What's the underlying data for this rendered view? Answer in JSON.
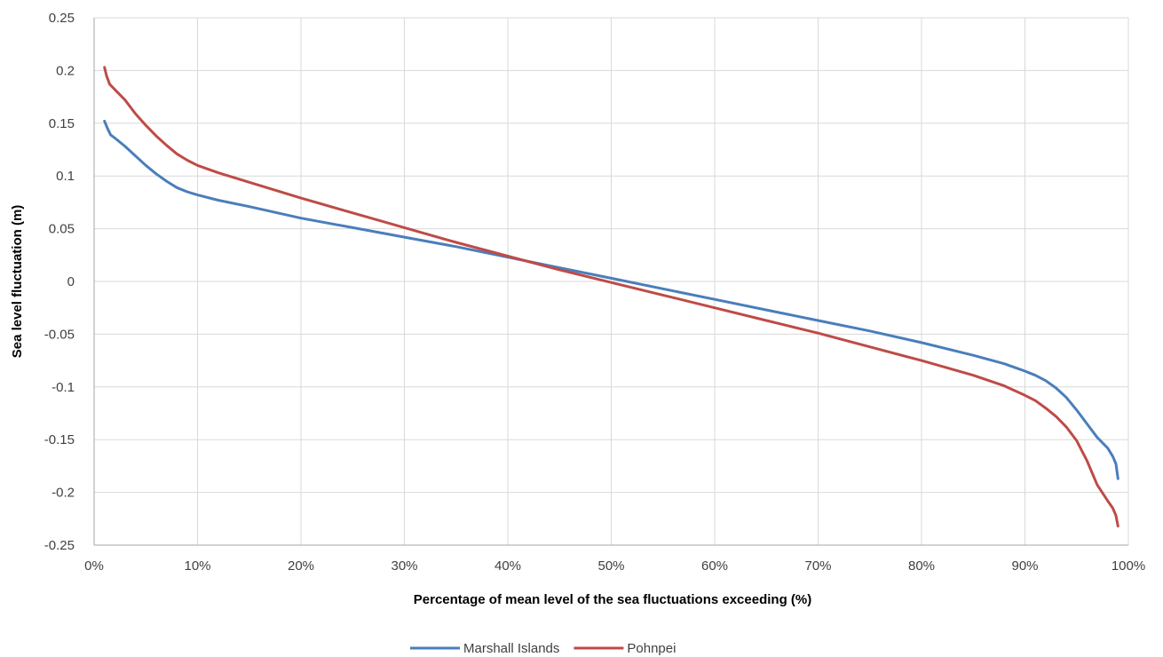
{
  "chart_data": {
    "type": "line",
    "title": "",
    "xlabel": "Percentage of mean level of the sea fluctuations  exceeding (%)",
    "ylabel": "Sea level fluctuation (m)",
    "xlim": [
      0,
      100
    ],
    "ylim": [
      -0.25,
      0.25
    ],
    "x_ticks": [
      0,
      10,
      20,
      30,
      40,
      50,
      60,
      70,
      80,
      90,
      100
    ],
    "x_tick_labels": [
      "0%",
      "10%",
      "20%",
      "30%",
      "40%",
      "50%",
      "60%",
      "70%",
      "80%",
      "90%",
      "100%"
    ],
    "y_ticks": [
      0.25,
      0.2,
      0.15,
      0.1,
      0.05,
      0,
      -0.05,
      -0.1,
      -0.15,
      -0.2,
      -0.25
    ],
    "y_tick_labels": [
      "0.25",
      "0.2",
      "0.15",
      "0.1",
      "0.05",
      "0",
      "-0.05",
      "-0.1",
      "-0.15",
      "-0.2",
      "-0.25"
    ],
    "grid": true,
    "legend_position": "bottom",
    "series": [
      {
        "name": "Marshall Islands",
        "color": "#4a7ebb",
        "points": [
          [
            1,
            0.152
          ],
          [
            1.3,
            0.145
          ],
          [
            1.6,
            0.139
          ],
          [
            2,
            0.136
          ],
          [
            3,
            0.128
          ],
          [
            4,
            0.119
          ],
          [
            5,
            0.11
          ],
          [
            6,
            0.102
          ],
          [
            7,
            0.095
          ],
          [
            8,
            0.089
          ],
          [
            9,
            0.085
          ],
          [
            10,
            0.082
          ],
          [
            12,
            0.077
          ],
          [
            15,
            0.071
          ],
          [
            20,
            0.06
          ],
          [
            25,
            0.051
          ],
          [
            30,
            0.042
          ],
          [
            35,
            0.033
          ],
          [
            40,
            0.023
          ],
          [
            45,
            0.013
          ],
          [
            50,
            0.003
          ],
          [
            55,
            -0.007
          ],
          [
            60,
            -0.017
          ],
          [
            65,
            -0.027
          ],
          [
            70,
            -0.037
          ],
          [
            75,
            -0.047
          ],
          [
            80,
            -0.058
          ],
          [
            85,
            -0.07
          ],
          [
            88,
            -0.078
          ],
          [
            90,
            -0.085
          ],
          [
            91,
            -0.089
          ],
          [
            92,
            -0.094
          ],
          [
            93,
            -0.101
          ],
          [
            94,
            -0.11
          ],
          [
            95,
            -0.122
          ],
          [
            96,
            -0.135
          ],
          [
            97,
            -0.148
          ],
          [
            98,
            -0.158
          ],
          [
            98.5,
            -0.166
          ],
          [
            98.8,
            -0.173
          ],
          [
            99,
            -0.187
          ]
        ]
      },
      {
        "name": "Pohnpei",
        "color": "#be4b48",
        "points": [
          [
            1,
            0.203
          ],
          [
            1.2,
            0.195
          ],
          [
            1.5,
            0.187
          ],
          [
            2,
            0.182
          ],
          [
            3,
            0.172
          ],
          [
            4,
            0.159
          ],
          [
            5,
            0.148
          ],
          [
            6,
            0.138
          ],
          [
            7,
            0.129
          ],
          [
            8,
            0.121
          ],
          [
            9,
            0.115
          ],
          [
            10,
            0.11
          ],
          [
            12,
            0.103
          ],
          [
            15,
            0.094
          ],
          [
            20,
            0.079
          ],
          [
            25,
            0.065
          ],
          [
            30,
            0.051
          ],
          [
            35,
            0.037
          ],
          [
            40,
            0.024
          ],
          [
            45,
            0.011
          ],
          [
            50,
            -0.001
          ],
          [
            55,
            -0.013
          ],
          [
            60,
            -0.025
          ],
          [
            65,
            -0.037
          ],
          [
            70,
            -0.049
          ],
          [
            75,
            -0.062
          ],
          [
            80,
            -0.075
          ],
          [
            85,
            -0.089
          ],
          [
            88,
            -0.099
          ],
          [
            90,
            -0.108
          ],
          [
            91,
            -0.113
          ],
          [
            92,
            -0.12
          ],
          [
            93,
            -0.128
          ],
          [
            94,
            -0.138
          ],
          [
            95,
            -0.151
          ],
          [
            96,
            -0.17
          ],
          [
            97,
            -0.193
          ],
          [
            98,
            -0.208
          ],
          [
            98.5,
            -0.215
          ],
          [
            98.8,
            -0.222
          ],
          [
            99,
            -0.232
          ]
        ]
      }
    ]
  }
}
